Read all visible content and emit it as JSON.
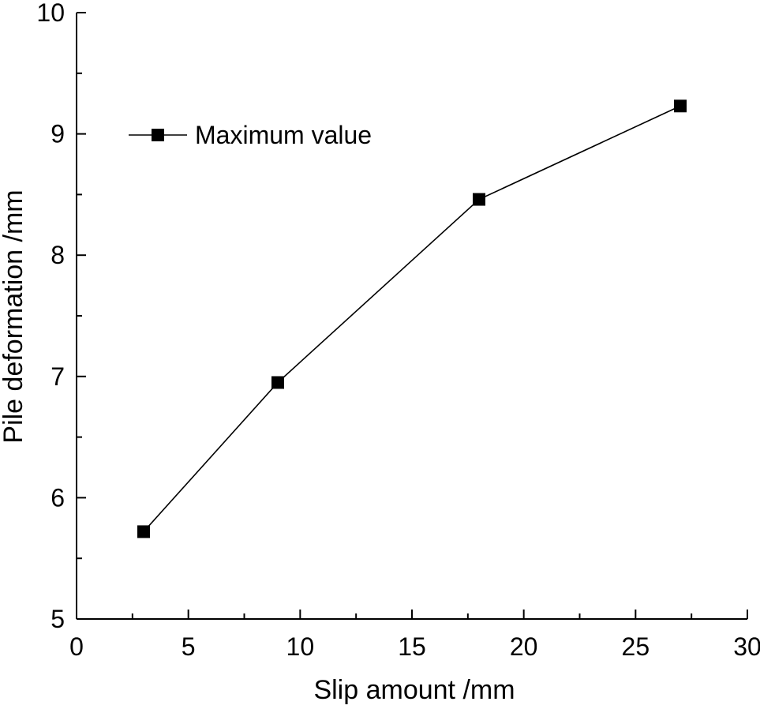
{
  "chart_data": {
    "type": "line",
    "title": "",
    "xlabel": "Slip amount /mm",
    "ylabel": "Pile deformation /mm",
    "xlim": [
      0,
      30
    ],
    "ylim": [
      5,
      10
    ],
    "x_ticks": [
      0,
      5,
      10,
      15,
      20,
      25,
      30
    ],
    "y_ticks": [
      5,
      6,
      7,
      8,
      9,
      10
    ],
    "grid": false,
    "legend_position": "top-left",
    "series": [
      {
        "name": "Maximum value",
        "marker": "square",
        "color": "#000000",
        "x": [
          3,
          9,
          18,
          27
        ],
        "y": [
          5.72,
          6.95,
          8.46,
          9.23
        ]
      }
    ]
  }
}
